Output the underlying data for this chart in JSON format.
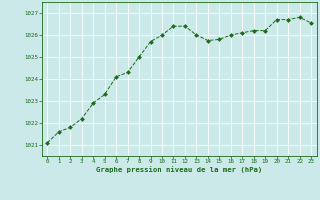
{
  "x": [
    0,
    1,
    2,
    3,
    4,
    5,
    6,
    7,
    8,
    9,
    10,
    11,
    12,
    13,
    14,
    15,
    16,
    17,
    18,
    19,
    20,
    21,
    22,
    23
  ],
  "y": [
    1021.1,
    1021.6,
    1021.8,
    1022.2,
    1022.9,
    1023.3,
    1024.1,
    1024.3,
    1025.0,
    1025.7,
    1026.0,
    1026.4,
    1026.4,
    1026.0,
    1025.75,
    1025.8,
    1026.0,
    1026.1,
    1026.2,
    1026.2,
    1026.7,
    1026.7,
    1026.8,
    1026.55
  ],
  "ylim": [
    1020.5,
    1027.5
  ],
  "yticks": [
    1021,
    1022,
    1023,
    1024,
    1025,
    1026,
    1027
  ],
  "xticks": [
    0,
    1,
    2,
    3,
    4,
    5,
    6,
    7,
    8,
    9,
    10,
    11,
    12,
    13,
    14,
    15,
    16,
    17,
    18,
    19,
    20,
    21,
    22,
    23
  ],
  "line_color": "#1a6b1a",
  "marker_color": "#1a6b1a",
  "bg_color": "#cce9e9",
  "grid_color": "#ffffff",
  "xlabel": "Graphe pression niveau de la mer (hPa)",
  "xlabel_color": "#1a6b1a",
  "tick_label_color": "#1a6b1a",
  "spine_color": "#1a6b1a",
  "xlim_left": -0.5,
  "xlim_right": 23.5
}
